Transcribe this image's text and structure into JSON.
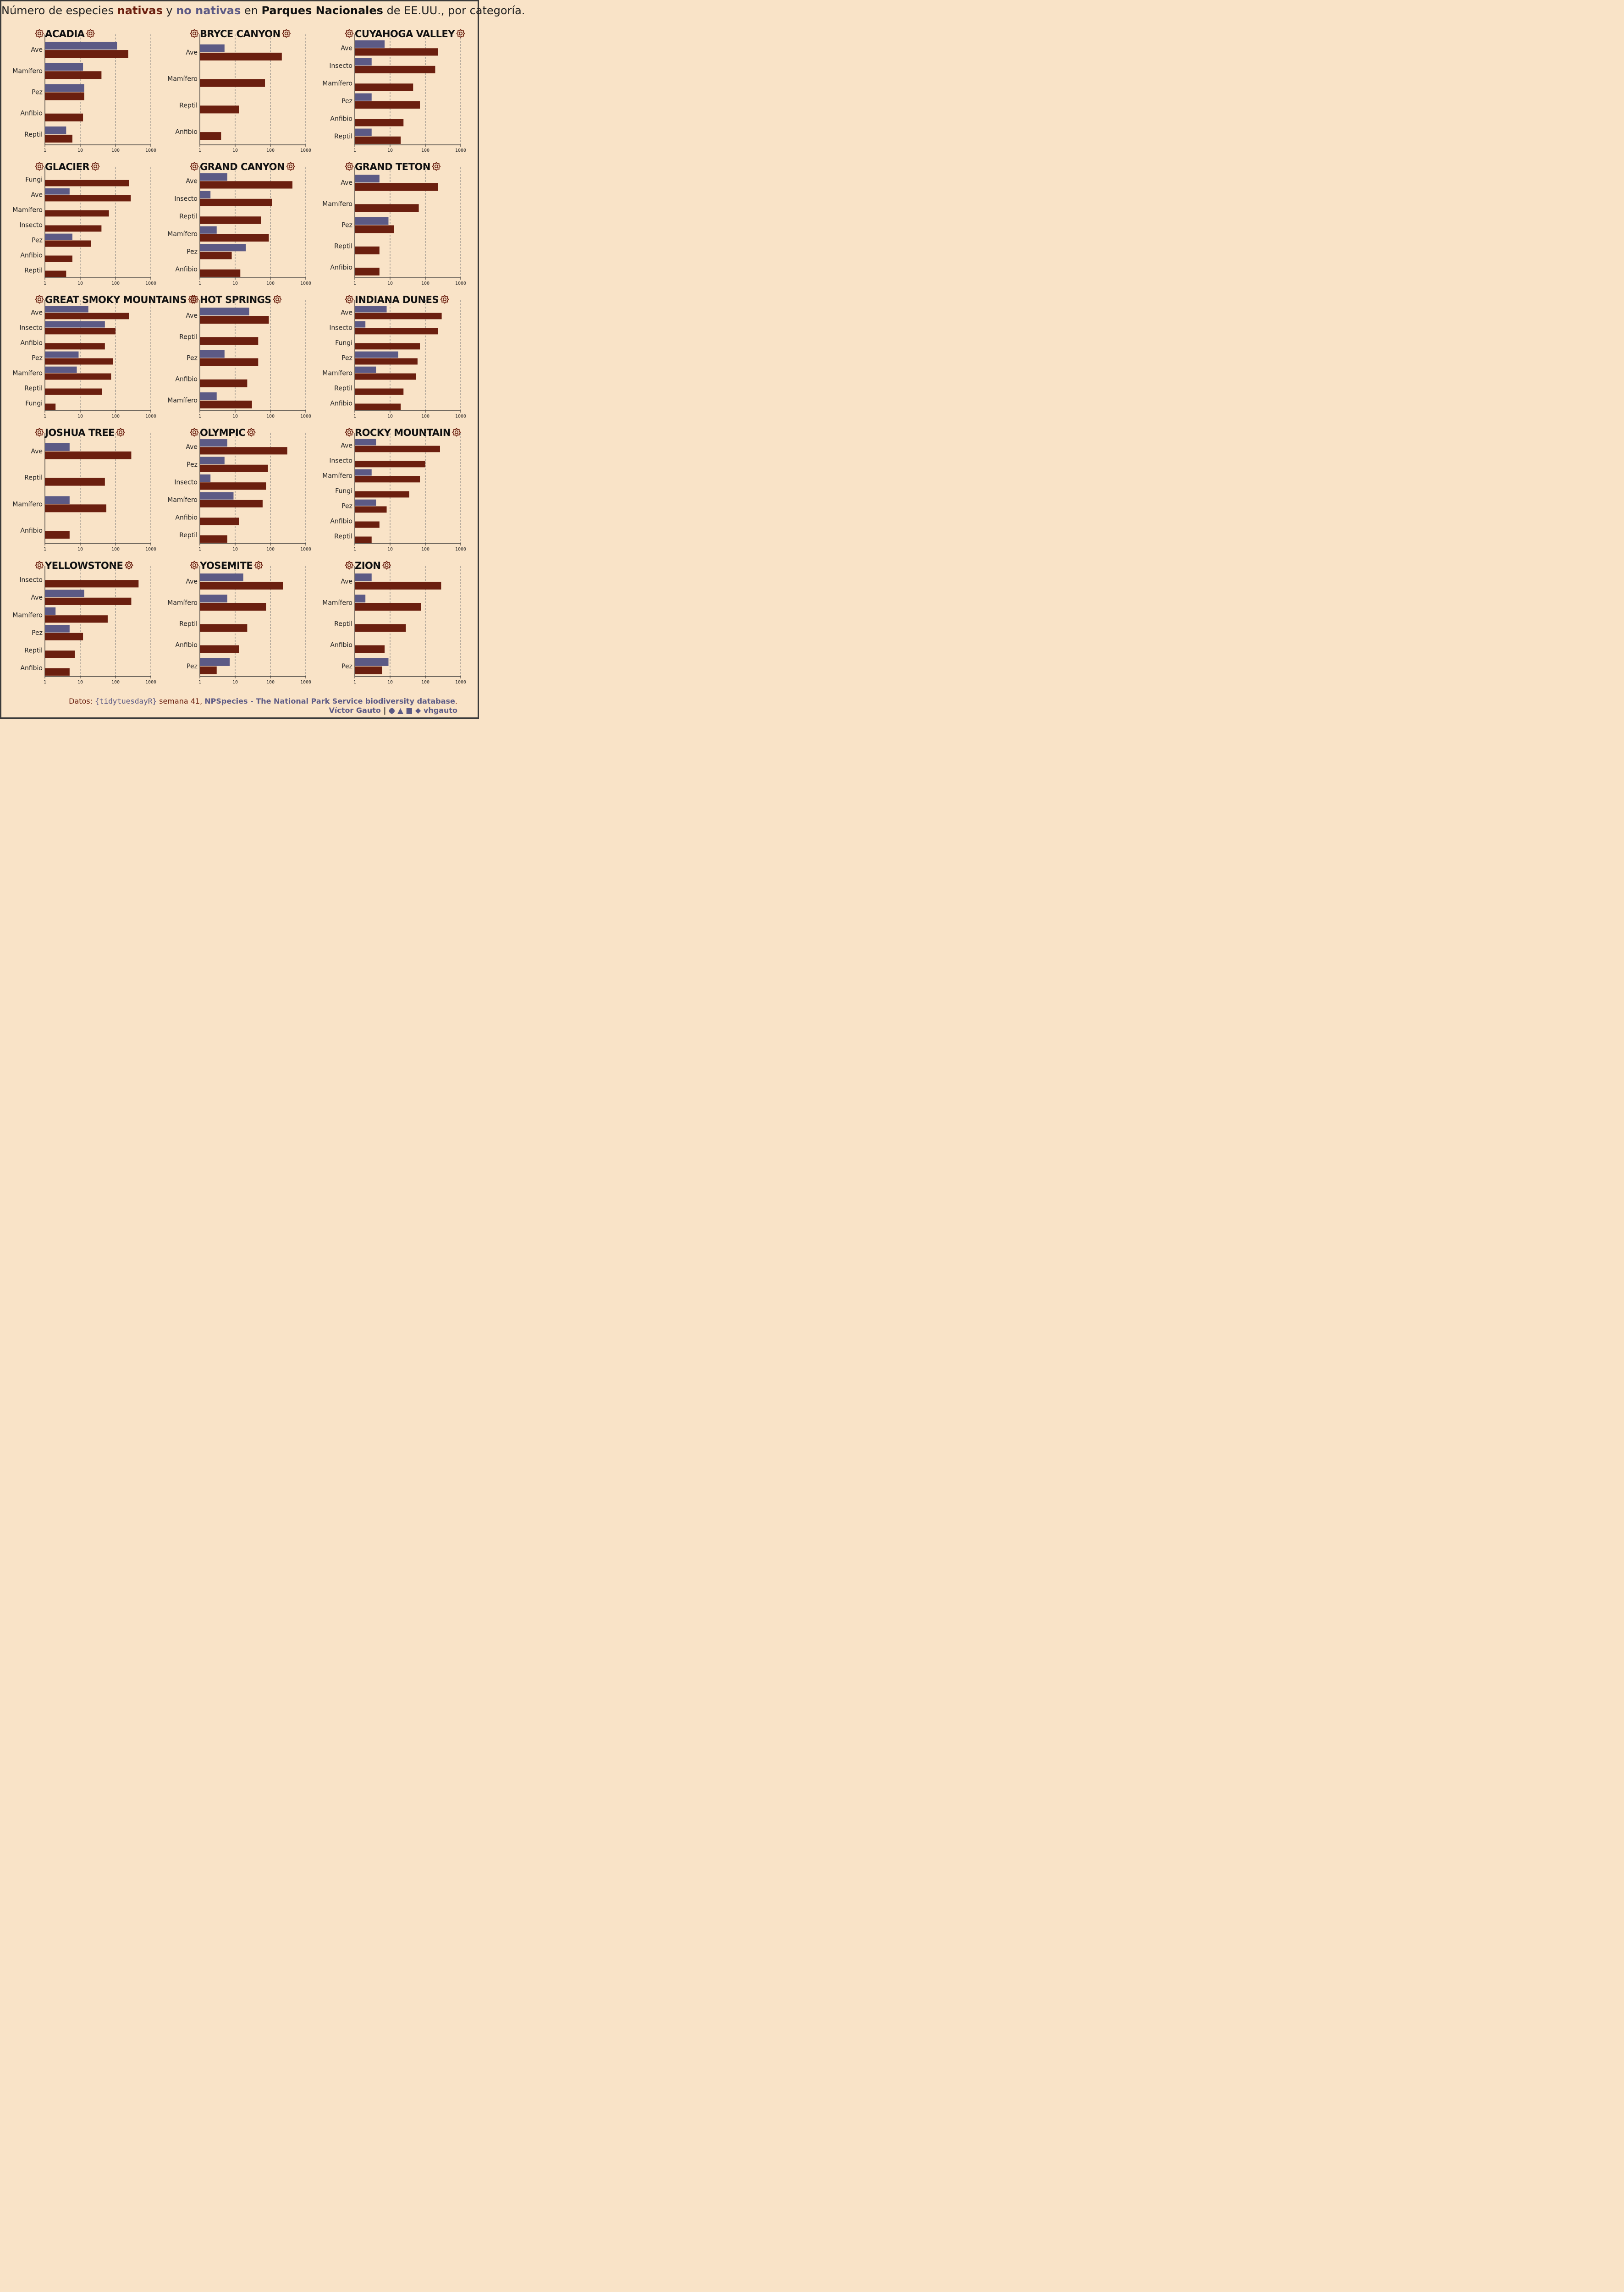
{
  "title": {
    "part1": "Número de especies ",
    "native": "nativas",
    "part2": " y ",
    "nonnative": "no nativas",
    "part3": " en ",
    "bold": "Parques Nacionales",
    "part4": " de EE.UU., por categoría."
  },
  "footer": {
    "data_prefix": "Datos: ",
    "tidytuesday": "{tidytuesdayR}",
    "week": " semana 41, ",
    "source": "NPSpecies - The National Park Service biodiversity database",
    "dot": ".",
    "author": "Víctor Gauto",
    "separator": "|",
    "handle": "vhgauto"
  },
  "colors": {
    "native": "#6B1F0F",
    "nonnative": "#5C5A85",
    "background": "#F9E3C7"
  },
  "chart_data": {
    "type": "bar",
    "orientation": "horizontal",
    "x_scale": "log10",
    "xlim": [
      1,
      1000
    ],
    "x_ticks": [
      "1",
      "10",
      "100",
      "1000"
    ],
    "series_names": [
      "no nativas",
      "nativas"
    ],
    "panels": [
      {
        "park": "ACADIA",
        "categories": [
          "Ave",
          "Mamífero",
          "Pez",
          "Anfibio",
          "Reptil"
        ],
        "nonnative": [
          110,
          12,
          13,
          null,
          4
        ],
        "native": [
          230,
          40,
          13,
          12,
          6
        ]
      },
      {
        "park": "BRYCE CANYON",
        "categories": [
          "Ave",
          "Mamífero",
          "Reptil",
          "Anfibio"
        ],
        "nonnative": [
          5,
          null,
          null,
          null
        ],
        "native": [
          210,
          70,
          13,
          4
        ]
      },
      {
        "park": "CUYAHOGA VALLEY",
        "categories": [
          "Ave",
          "Insecto",
          "Mamífero",
          "Pez",
          "Anfibio",
          "Reptil"
        ],
        "nonnative": [
          7,
          3,
          null,
          3,
          null,
          3
        ],
        "native": [
          230,
          190,
          45,
          70,
          24,
          20
        ]
      },
      {
        "park": "GLACIER",
        "categories": [
          "Fungi",
          "Ave",
          "Mamífero",
          "Insecto",
          "Pez",
          "Anfibio",
          "Reptil"
        ],
        "nonnative": [
          null,
          5,
          null,
          null,
          6,
          null,
          null
        ],
        "native": [
          240,
          270,
          65,
          40,
          20,
          6,
          4
        ]
      },
      {
        "park": "GRAND CANYON",
        "categories": [
          "Ave",
          "Insecto",
          "Reptil",
          "Mamífero",
          "Pez",
          "Anfibio"
        ],
        "nonnative": [
          6,
          2,
          null,
          3,
          20,
          null
        ],
        "native": [
          420,
          110,
          55,
          90,
          8,
          14
        ]
      },
      {
        "park": "GRAND TETON",
        "categories": [
          "Ave",
          "Mamífero",
          "Pez",
          "Reptil",
          "Anfibio"
        ],
        "nonnative": [
          5,
          null,
          9,
          null,
          null
        ],
        "native": [
          230,
          65,
          13,
          5,
          5
        ]
      },
      {
        "park": "GREAT SMOKY MOUNTAINS",
        "categories": [
          "Ave",
          "Insecto",
          "Anfibio",
          "Pez",
          "Mamífero",
          "Reptil",
          "Fungi"
        ],
        "nonnative": [
          17,
          50,
          null,
          9,
          8,
          null,
          null
        ],
        "native": [
          240,
          100,
          50,
          85,
          75,
          42,
          2
        ]
      },
      {
        "park": "HOT SPRINGS",
        "categories": [
          "Ave",
          "Reptil",
          "Pez",
          "Anfibio",
          "Mamífero"
        ],
        "nonnative": [
          25,
          null,
          5,
          null,
          3
        ],
        "native": [
          90,
          45,
          45,
          22,
          30
        ]
      },
      {
        "park": "INDIANA DUNES",
        "categories": [
          "Ave",
          "Insecto",
          "Fungi",
          "Pez",
          "Mamífero",
          "Reptil",
          "Anfibio"
        ],
        "nonnative": [
          8,
          2,
          null,
          17,
          4,
          null,
          null
        ],
        "native": [
          290,
          230,
          70,
          60,
          55,
          24,
          20
        ]
      },
      {
        "park": "JOSHUA TREE",
        "categories": [
          "Ave",
          "Reptil",
          "Mamífero",
          "Anfibio"
        ],
        "nonnative": [
          5,
          null,
          5,
          null
        ],
        "native": [
          280,
          50,
          55,
          5
        ]
      },
      {
        "park": "OLYMPIC",
        "categories": [
          "Ave",
          "Pez",
          "Insecto",
          "Mamífero",
          "Anfibio",
          "Reptil"
        ],
        "nonnative": [
          6,
          5,
          2,
          9,
          null,
          null
        ],
        "native": [
          300,
          85,
          75,
          60,
          13,
          6
        ]
      },
      {
        "park": "ROCKY MOUNTAIN",
        "categories": [
          "Ave",
          "Insecto",
          "Mamífero",
          "Fungi",
          "Pez",
          "Anfibio",
          "Reptil"
        ],
        "nonnative": [
          4,
          null,
          3,
          null,
          4,
          null,
          null
        ],
        "native": [
          260,
          100,
          70,
          35,
          8,
          5,
          3
        ]
      },
      {
        "park": "YELLOWSTONE",
        "categories": [
          "Insecto",
          "Ave",
          "Mamífero",
          "Pez",
          "Reptil",
          "Anfibio"
        ],
        "nonnative": [
          null,
          13,
          2,
          5,
          null,
          null
        ],
        "native": [
          450,
          280,
          60,
          12,
          7,
          5
        ]
      },
      {
        "park": "YOSEMITE",
        "categories": [
          "Ave",
          "Mamífero",
          "Reptil",
          "Anfibio",
          "Pez"
        ],
        "nonnative": [
          17,
          6,
          null,
          null,
          7
        ],
        "native": [
          230,
          75,
          22,
          13,
          3
        ]
      },
      {
        "park": "ZION",
        "categories": [
          "Ave",
          "Mamífero",
          "Reptil",
          "Anfibio",
          "Pez"
        ],
        "nonnative": [
          3,
          2,
          null,
          null,
          9
        ],
        "native": [
          280,
          75,
          28,
          7,
          6
        ]
      }
    ]
  }
}
